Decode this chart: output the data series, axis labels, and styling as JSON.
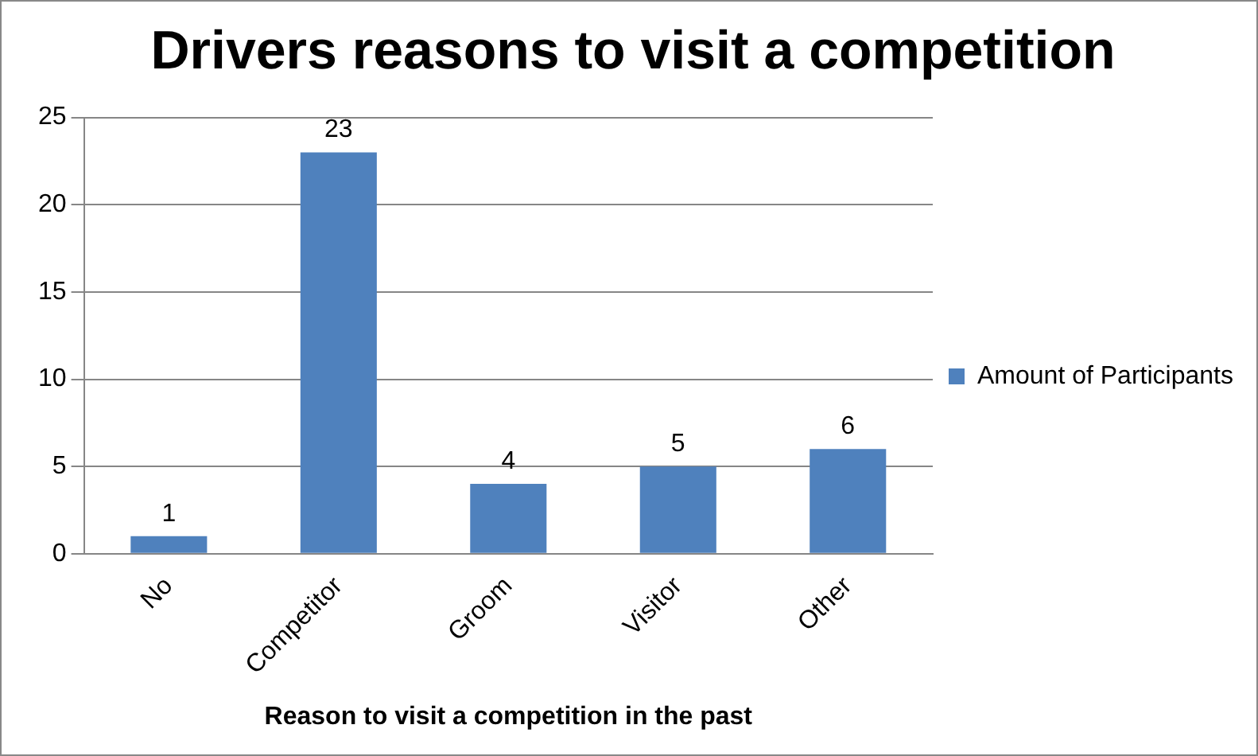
{
  "chart_data": {
    "type": "bar",
    "title": "Drivers reasons to visit a competition",
    "xlabel": "Reason to visit a competition in the past",
    "categories": [
      "No",
      "Competitor",
      "Groom",
      "Visitor",
      "Other"
    ],
    "series": [
      {
        "name": "Amount of Participants",
        "color": "#4f81bd",
        "values": [
          1,
          23,
          4,
          5,
          6
        ]
      }
    ],
    "ylim": [
      0,
      25
    ],
    "yticks": [
      0,
      5,
      10,
      15,
      20,
      25
    ],
    "grid": "y",
    "legend": "right",
    "data_labels": true
  }
}
